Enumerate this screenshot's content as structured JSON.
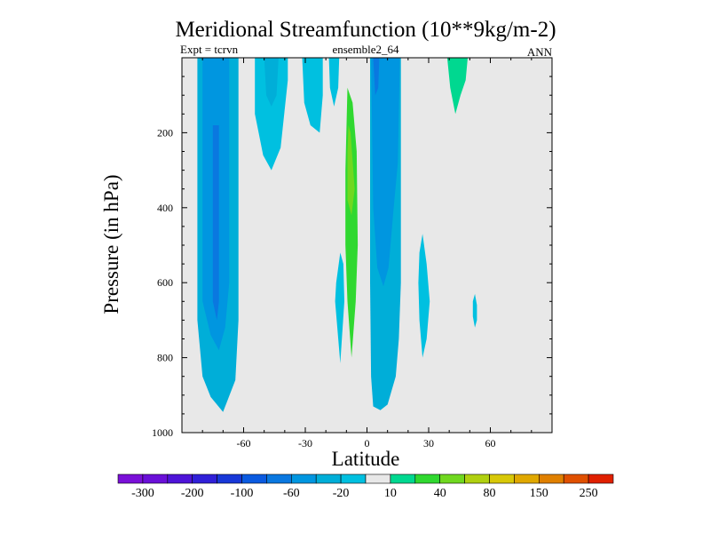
{
  "chart_data": {
    "type": "heatmap",
    "title": "Meridional Streamfunction (10**9kg/m-2)",
    "subtitle_left": "Expt = tcrvn",
    "subtitle_center": "ensemble2_64",
    "subtitle_right": "ANN",
    "xlabel": "Latitude",
    "ylabel": "Pressure (in hPa)",
    "xlim": [
      -90,
      90
    ],
    "ylim": [
      0,
      1000
    ],
    "y_inverted": true,
    "x_ticks": [
      {
        "value": -60,
        "label": "-60"
      },
      {
        "value": -30,
        "label": "-30"
      },
      {
        "value": 0,
        "label": "0"
      },
      {
        "value": 30,
        "label": "30"
      },
      {
        "value": 60,
        "label": "60"
      }
    ],
    "y_ticks": [
      {
        "value": 200,
        "label": "200"
      },
      {
        "value": 400,
        "label": "400"
      },
      {
        "value": 600,
        "label": "600"
      },
      {
        "value": 800,
        "label": "800"
      },
      {
        "value": 1000,
        "label": "1000"
      }
    ],
    "background_color": "#e8e8e8",
    "colorbar": {
      "colors": [
        "#7a10d8",
        "#6a10d8",
        "#4e14d8",
        "#3020d8",
        "#1838d8",
        "#0a5ae0",
        "#0a78e0",
        "#0096e0",
        "#00aed8",
        "#00c0e0",
        "#e8e8e8",
        "#00d890",
        "#30d830",
        "#70d820",
        "#b0d010",
        "#d8c808",
        "#e0a800",
        "#e08000",
        "#e05000",
        "#e02000"
      ],
      "labels": [
        "-300",
        "-200",
        "-100",
        "-60",
        "-20",
        "10",
        "40",
        "80",
        "150",
        "250"
      ]
    },
    "contour_regions": [
      {
        "name": "sh-cell-outer",
        "level": -20,
        "color": "#00aed8",
        "outline": [
          [
            -82.5,
            0
          ],
          [
            -62.5,
            0
          ],
          [
            -62.5,
            700
          ],
          [
            -64,
            860
          ],
          [
            -70,
            945
          ],
          [
            -76,
            905
          ],
          [
            -80,
            850
          ],
          [
            -82.5,
            700
          ]
        ]
      },
      {
        "name": "sh-cell-mid",
        "level": -60,
        "color": "#0096e0",
        "outline": [
          [
            -80,
            0
          ],
          [
            -67,
            0
          ],
          [
            -67,
            600
          ],
          [
            -69,
            720
          ],
          [
            -72,
            780
          ],
          [
            -76,
            740
          ],
          [
            -80,
            650
          ]
        ]
      },
      {
        "name": "sh-cell-core",
        "level": -100,
        "color": "#0a78e0",
        "outline": [
          [
            -75,
            180
          ],
          [
            -72,
            180
          ],
          [
            -72,
            650
          ],
          [
            -73,
            700
          ],
          [
            -75,
            650
          ]
        ]
      },
      {
        "name": "sh-upper-lobe-1",
        "level": -20,
        "color": "#00c0e0",
        "outline": [
          [
            -54.5,
            0
          ],
          [
            -38.5,
            0
          ],
          [
            -38.5,
            60
          ],
          [
            -42,
            240
          ],
          [
            -46.5,
            300
          ],
          [
            -50.5,
            260
          ],
          [
            -54.5,
            150
          ]
        ]
      },
      {
        "name": "sh-upper-lobe-1-inner",
        "level": -60,
        "color": "#00aed8",
        "outline": [
          [
            -50,
            0
          ],
          [
            -43,
            0
          ],
          [
            -44,
            100
          ],
          [
            -46.5,
            130
          ],
          [
            -49,
            100
          ]
        ]
      },
      {
        "name": "sh-upper-lobe-2",
        "level": -20,
        "color": "#00c0e0",
        "outline": [
          [
            -31.5,
            0
          ],
          [
            -21.5,
            0
          ],
          [
            -21.5,
            100
          ],
          [
            -23,
            200
          ],
          [
            -27.5,
            180
          ],
          [
            -30.5,
            120
          ]
        ]
      },
      {
        "name": "sh-upper-lobe-3",
        "level": -20,
        "color": "#00c0e0",
        "outline": [
          [
            -18.5,
            0
          ],
          [
            -13.5,
            0
          ],
          [
            -14,
            80
          ],
          [
            -16,
            130
          ],
          [
            -18,
            80
          ]
        ]
      },
      {
        "name": "eq-positive-band",
        "level": 40,
        "color": "#30d830",
        "outline": [
          [
            -9.5,
            80
          ],
          [
            -7,
            120
          ],
          [
            -5,
            250
          ],
          [
            -4.5,
            500
          ],
          [
            -5.5,
            650
          ],
          [
            -7.5,
            800
          ],
          [
            -9.5,
            650
          ],
          [
            -10.5,
            500
          ],
          [
            -10.5,
            300
          ]
        ]
      },
      {
        "name": "eq-positive-core",
        "level": 80,
        "color": "#70d820",
        "outline": [
          [
            -9,
            180
          ],
          [
            -8,
            200
          ],
          [
            -6,
            350
          ],
          [
            -7.5,
            420
          ],
          [
            -9.5,
            380
          ],
          [
            -9.5,
            250
          ]
        ]
      },
      {
        "name": "sh-lower-lobe",
        "level": -20,
        "color": "#00c0e0",
        "outline": [
          [
            -13,
            520
          ],
          [
            -11.5,
            550
          ],
          [
            -11,
            650
          ],
          [
            -13,
            815
          ],
          [
            -15.5,
            650
          ],
          [
            -15,
            600
          ]
        ]
      },
      {
        "name": "nh-cell-outer",
        "level": -20,
        "color": "#00aed8",
        "outline": [
          [
            1.5,
            0
          ],
          [
            16.5,
            0
          ],
          [
            16.5,
            600
          ],
          [
            15.5,
            750
          ],
          [
            14,
            850
          ],
          [
            10,
            925
          ],
          [
            6.5,
            940
          ],
          [
            3,
            930
          ],
          [
            2,
            850
          ],
          [
            1.5,
            600
          ]
        ]
      },
      {
        "name": "nh-cell-mid",
        "level": -60,
        "color": "#0096e0",
        "outline": [
          [
            2,
            0
          ],
          [
            16,
            0
          ],
          [
            15,
            280
          ],
          [
            13,
            400
          ],
          [
            10.5,
            560
          ],
          [
            8,
            610
          ],
          [
            5,
            560
          ],
          [
            3,
            400
          ]
        ]
      },
      {
        "name": "nh-cell-core",
        "level": -100,
        "color": "#0a78e0",
        "outline": [
          [
            3,
            0
          ],
          [
            6,
            0
          ],
          [
            5.5,
            80
          ],
          [
            4,
            100
          ]
        ]
      },
      {
        "name": "nh-lower-lobe",
        "level": -20,
        "color": "#00c0e0",
        "outline": [
          [
            27,
            470
          ],
          [
            29,
            550
          ],
          [
            30.5,
            650
          ],
          [
            29,
            750
          ],
          [
            27,
            800
          ],
          [
            25.5,
            700
          ],
          [
            25,
            600
          ],
          [
            25.5,
            520
          ]
        ]
      },
      {
        "name": "nh-positive-lobe",
        "level": 10,
        "color": "#00d890",
        "outline": [
          [
            39,
            0
          ],
          [
            49,
            0
          ],
          [
            48,
            60
          ],
          [
            45.5,
            100
          ],
          [
            43,
            150
          ],
          [
            40.5,
            80
          ]
        ]
      },
      {
        "name": "nh-small-lobe",
        "level": -20,
        "color": "#00c0e0",
        "outline": [
          [
            52.5,
            630
          ],
          [
            53.5,
            660
          ],
          [
            53.5,
            700
          ],
          [
            52.5,
            720
          ],
          [
            51.5,
            690
          ],
          [
            51.5,
            650
          ]
        ]
      }
    ]
  }
}
